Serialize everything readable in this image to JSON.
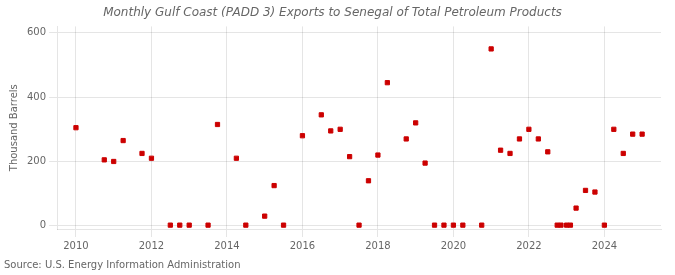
{
  "chart_data": {
    "type": "scatter",
    "title": "Monthly Gulf Coast (PADD 3) Exports to Senegal of Total Petroleum Products",
    "ylabel": "Thousand Barrels",
    "annotations": [
      "Source: U.S. Energy Information Administration"
    ],
    "color": "#cc0000",
    "marker": "square",
    "grid": true,
    "xlim": [
      2009.5,
      2025.5
    ],
    "xticks": [
      2010,
      2012,
      2014,
      2016,
      2018,
      2020,
      2022,
      2024
    ],
    "ylim": [
      -10,
      620
    ],
    "yticks": [
      0,
      200,
      400,
      600
    ],
    "x": [
      2010.0,
      2010.75,
      2011.0,
      2011.25,
      2011.75,
      2012.0,
      2012.5,
      2012.75,
      2013.0,
      2013.5,
      2013.75,
      2014.25,
      2014.5,
      2015.0,
      2015.25,
      2015.5,
      2016.0,
      2016.5,
      2016.75,
      2017.0,
      2017.25,
      2017.5,
      2017.75,
      2018.0,
      2018.25,
      2018.75,
      2019.0,
      2019.25,
      2019.5,
      2019.75,
      2020.0,
      2020.25,
      2020.75,
      2021.0,
      2021.25,
      2021.5,
      2021.75,
      2022.0,
      2022.25,
      2022.5,
      2022.75,
      2022.85,
      2023.0,
      2023.1,
      2023.25,
      2023.5,
      2023.75,
      2024.0,
      2024.25,
      2024.5,
      2024.75,
      2025.0
    ],
    "values": [
      305,
      205,
      200,
      265,
      225,
      210,
      2,
      2,
      2,
      2,
      315,
      210,
      2,
      30,
      125,
      2,
      280,
      345,
      295,
      300,
      215,
      2,
      140,
      220,
      445,
      270,
      320,
      195,
      2,
      2,
      2,
      2,
      2,
      550,
      235,
      225,
      270,
      300,
      270,
      230,
      2,
      2,
      2,
      2,
      55,
      110,
      105,
      2,
      300,
      225,
      285,
      285
    ]
  }
}
